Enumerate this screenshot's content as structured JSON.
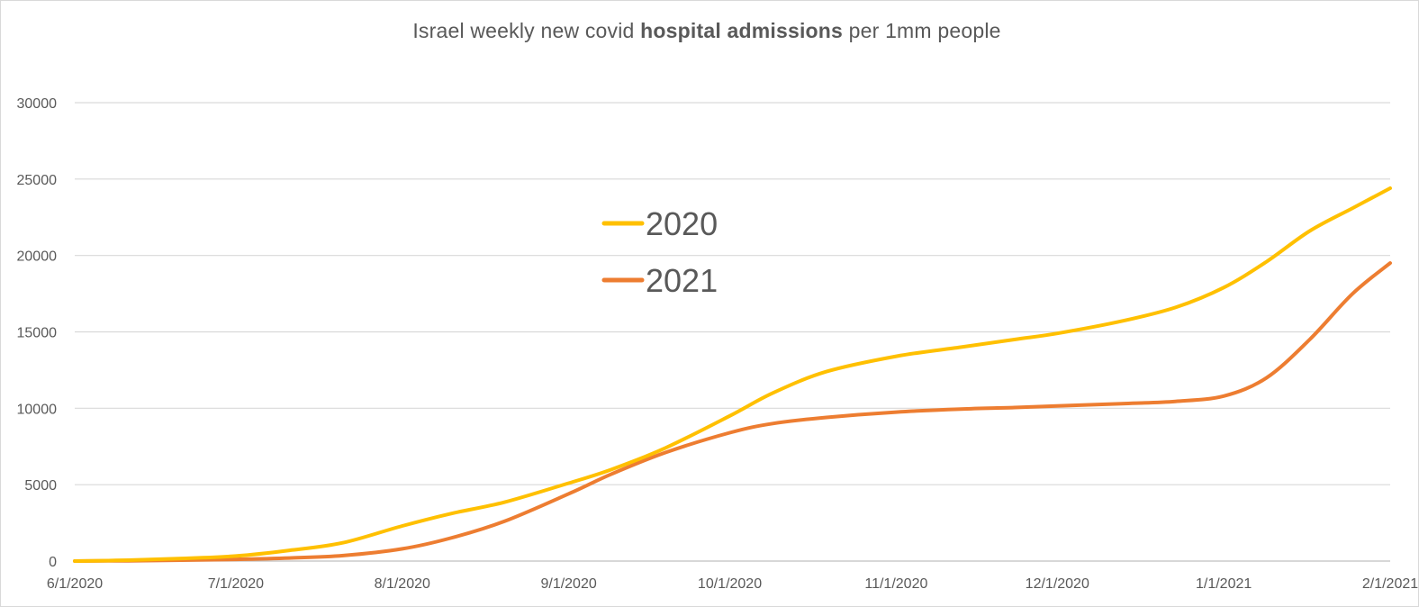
{
  "chart_data": {
    "type": "line",
    "title": {
      "prefix": "Israel weekly new covid ",
      "bold": "hospital admissions",
      "suffix": " per 1mm people"
    },
    "xlabel": "",
    "ylabel": "",
    "ylim": [
      0,
      30000
    ],
    "grid": true,
    "legend_position": "center-left",
    "y_ticks": [
      0,
      5000,
      10000,
      15000,
      20000,
      25000,
      30000
    ],
    "x_ticks": [
      {
        "label": "6/1/2020",
        "day": 0
      },
      {
        "label": "7/1/2020",
        "day": 30
      },
      {
        "label": "8/1/2020",
        "day": 61
      },
      {
        "label": "9/1/2020",
        "day": 92
      },
      {
        "label": "10/1/2020",
        "day": 122
      },
      {
        "label": "11/1/2020",
        "day": 153
      },
      {
        "label": "12/1/2020",
        "day": 183
      },
      {
        "label": "1/1/2021",
        "day": 214
      },
      {
        "label": "2/1/2021",
        "day": 245
      }
    ],
    "xlim": [
      0,
      245
    ],
    "series": [
      {
        "name": "2020",
        "color": "#FFC000",
        "points": [
          [
            0,
            0
          ],
          [
            10,
            60
          ],
          [
            20,
            170
          ],
          [
            30,
            330
          ],
          [
            40,
            700
          ],
          [
            50,
            1200
          ],
          [
            61,
            2300
          ],
          [
            70,
            3100
          ],
          [
            80,
            3850
          ],
          [
            92,
            5100
          ],
          [
            100,
            6000
          ],
          [
            110,
            7400
          ],
          [
            122,
            9500
          ],
          [
            130,
            11000
          ],
          [
            140,
            12400
          ],
          [
            153,
            13400
          ],
          [
            165,
            14000
          ],
          [
            175,
            14500
          ],
          [
            183,
            14900
          ],
          [
            195,
            15700
          ],
          [
            205,
            16600
          ],
          [
            214,
            17900
          ],
          [
            222,
            19600
          ],
          [
            230,
            21600
          ],
          [
            238,
            23100
          ],
          [
            245,
            24400
          ]
        ]
      },
      {
        "name": "2021",
        "color": "#ED7D31",
        "points": [
          [
            0,
            0
          ],
          [
            10,
            20
          ],
          [
            20,
            60
          ],
          [
            30,
            110
          ],
          [
            40,
            200
          ],
          [
            50,
            360
          ],
          [
            61,
            800
          ],
          [
            70,
            1500
          ],
          [
            80,
            2600
          ],
          [
            92,
            4400
          ],
          [
            100,
            5700
          ],
          [
            110,
            7100
          ],
          [
            122,
            8400
          ],
          [
            130,
            9000
          ],
          [
            140,
            9400
          ],
          [
            153,
            9750
          ],
          [
            165,
            9950
          ],
          [
            175,
            10050
          ],
          [
            183,
            10150
          ],
          [
            195,
            10300
          ],
          [
            205,
            10450
          ],
          [
            214,
            10800
          ],
          [
            222,
            12000
          ],
          [
            230,
            14500
          ],
          [
            238,
            17500
          ],
          [
            245,
            19500
          ]
        ]
      }
    ]
  }
}
